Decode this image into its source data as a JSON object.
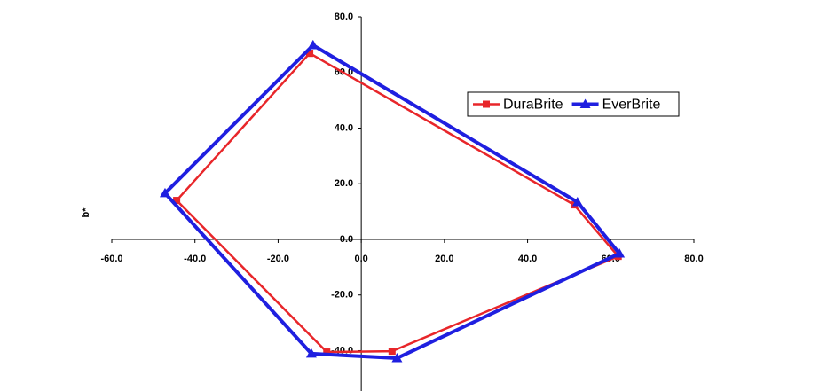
{
  "chart_data": {
    "type": "line",
    "y_label": "b*",
    "xlim": [
      -60,
      80
    ],
    "ylim": [
      -54,
      80
    ],
    "xticks": [
      {
        "value": -60,
        "label": "-60.0"
      },
      {
        "value": -40,
        "label": "-40.0"
      },
      {
        "value": -20,
        "label": "-20.0"
      },
      {
        "value": 0,
        "label": "0.0"
      },
      {
        "value": 20,
        "label": "20.0"
      },
      {
        "value": 40,
        "label": "40.0"
      },
      {
        "value": 60,
        "label": "60.0"
      },
      {
        "value": 80,
        "label": "80.0"
      }
    ],
    "yticks": [
      {
        "value": -40,
        "label": "-40.0"
      },
      {
        "value": -20,
        "label": "-20.0"
      },
      {
        "value": 0,
        "label": "0.0"
      },
      {
        "value": 20,
        "label": "20.0"
      },
      {
        "value": 40,
        "label": "40.0"
      },
      {
        "value": 60,
        "label": "60.0"
      },
      {
        "value": 80,
        "label": "80.0"
      }
    ],
    "legend": "upper right",
    "series": [
      {
        "name": "DuraBrite",
        "color": "#e8262a",
        "marker": "square",
        "x": [
          -12.4,
          51.2,
          61.8,
          7.4,
          -8.3,
          -44.4,
          -12.4
        ],
        "values": [
          66.9,
          12.4,
          -6.1,
          -40.2,
          -40.5,
          14.0,
          66.9
        ]
      },
      {
        "name": "EverBrite",
        "color": "#1f1fe0",
        "marker": "triangle",
        "x": [
          -11.6,
          52.0,
          62.1,
          8.6,
          -12.0,
          -47.2,
          -11.6
        ],
        "values": [
          69.8,
          13.4,
          -5.1,
          -42.7,
          -41.1,
          16.6,
          69.8
        ]
      }
    ]
  }
}
